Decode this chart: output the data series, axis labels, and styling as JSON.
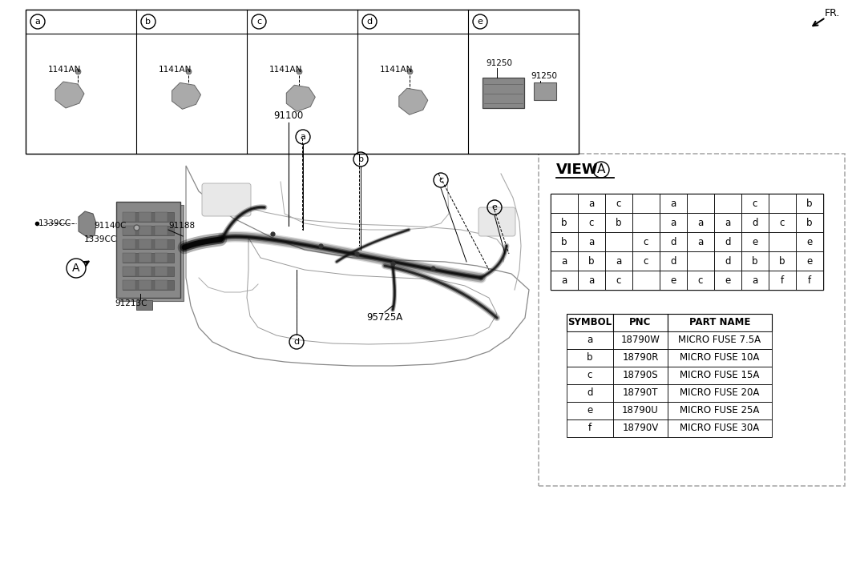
{
  "bg_color": "#ffffff",
  "fuse_grid_rows": [
    [
      "",
      "a",
      "c",
      "",
      "a",
      "",
      "",
      "c",
      "",
      "b"
    ],
    [
      "b",
      "c",
      "b",
      "",
      "a",
      "a",
      "a",
      "d",
      "c",
      "b"
    ],
    [
      "b",
      "a",
      "",
      "c",
      "d",
      "a",
      "d",
      "e",
      "",
      "e"
    ],
    [
      "a",
      "b",
      "a",
      "c",
      "d",
      "",
      "d",
      "b",
      "b",
      "e"
    ],
    [
      "a",
      "a",
      "c",
      "",
      "e",
      "c",
      "e",
      "a",
      "f",
      "f"
    ]
  ],
  "symbol_headers": [
    "SYMBOL",
    "PNC",
    "PART NAME"
  ],
  "symbol_rows": [
    [
      "a",
      "18790W",
      "MICRO FUSE 7.5A"
    ],
    [
      "b",
      "18790R",
      "MICRO FUSE 10A"
    ],
    [
      "c",
      "18790S",
      "MICRO FUSE 15A"
    ],
    [
      "d",
      "18790T",
      "MICRO FUSE 20A"
    ],
    [
      "e",
      "18790U",
      "MICRO FUSE 25A"
    ],
    [
      "f",
      "18790V",
      "MICRO FUSE 30A"
    ]
  ],
  "bottom_labels": [
    "a",
    "b",
    "c",
    "d",
    "e"
  ],
  "bottom_parts_a": "1141AN",
  "bottom_parts_b": "1141AN",
  "bottom_parts_c": "1141AN",
  "bottom_parts_d": "1141AN",
  "bottom_parts_e1": "91250",
  "bottom_parts_e2": "91250",
  "part_91100": "91100",
  "part_95725A": "95725A",
  "part_1339CC_1": "1339CC",
  "part_1339CC_2": "1339CC",
  "part_91140C": "91140C",
  "part_91188": "91188",
  "part_91213C": "91213C",
  "view_label": "VIEW",
  "fr_label": "FR.",
  "circle_A": "A",
  "conn_labels": [
    "a",
    "b",
    "c",
    "d",
    "e"
  ]
}
